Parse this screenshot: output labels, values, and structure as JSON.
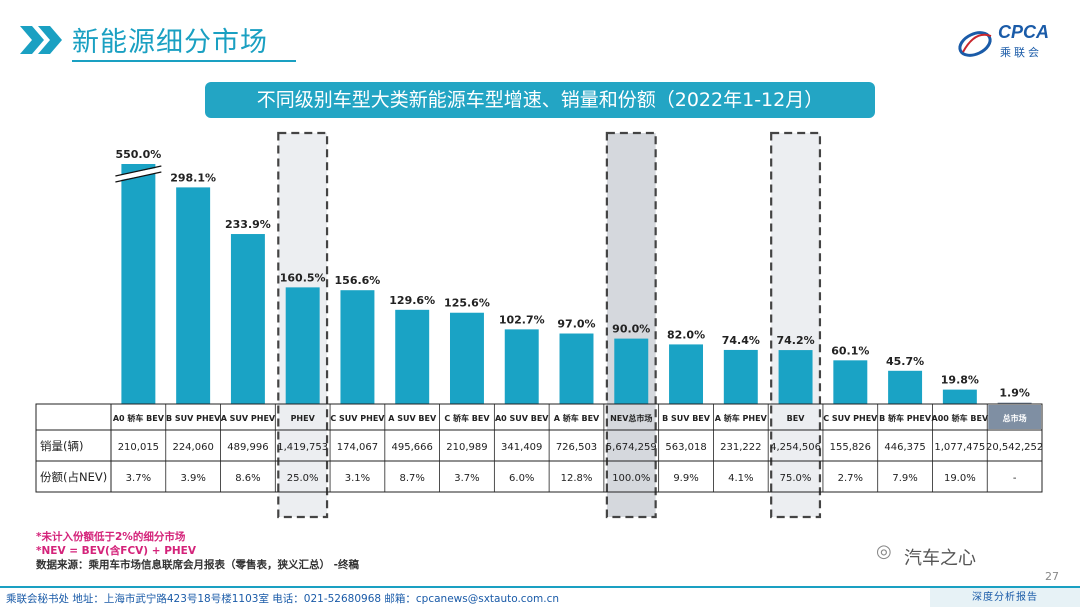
{
  "header": {
    "title": "新能源细分市场",
    "logo_text": "CPCA",
    "logo_sub": "乘联会"
  },
  "chart_data": {
    "type": "bar",
    "title": "不同级别车型大类新能源车型增速、销量和份额（2022年1-12月）",
    "categories": [
      "A0 轿车 BEV",
      "B SUV PHEV",
      "A SUV PHEV",
      "PHEV",
      "C SUV PHEV",
      "A SUV BEV",
      "C 轿车 BEV",
      "A0 SUV BEV",
      "A 轿车 BEV",
      "NEV总市场",
      "B SUV BEV",
      "A 轿车 PHEV",
      "BEV",
      "C SUV PHEV",
      "B 轿车 PHEV",
      "A00 轿车 BEV",
      "总市场"
    ],
    "growth_labels": [
      "550.0%",
      "298.1%",
      "233.9%",
      "160.5%",
      "156.6%",
      "129.6%",
      "125.6%",
      "102.7%",
      "97.0%",
      "90.0%",
      "82.0%",
      "74.4%",
      "74.2%",
      "60.1%",
      "45.7%",
      "19.8%",
      "1.9%"
    ],
    "values": [
      550.0,
      298.1,
      233.9,
      160.5,
      156.6,
      129.6,
      125.6,
      102.7,
      97.0,
      90.0,
      82.0,
      74.4,
      74.2,
      60.1,
      45.7,
      19.8,
      1.9
    ],
    "axis_break_on": "A0 轿车 BEV",
    "highlighted_columns": [
      "PHEV",
      "NEV总市场",
      "BEV"
    ],
    "bar_color": "#1aa3c5",
    "total_market_color": "#7f8fa3",
    "rows": [
      {
        "label": "销量(辆)",
        "values": [
          "210,015",
          "224,060",
          "489,996",
          "1,419,753",
          "174,067",
          "495,666",
          "210,989",
          "341,409",
          "726,503",
          "5,674,259",
          "563,018",
          "231,222",
          "4,254,506",
          "155,826",
          "446,375",
          "1,077,475",
          "20,542,252"
        ]
      },
      {
        "label": "份额(占NEV)",
        "values": [
          "3.7%",
          "3.9%",
          "8.6%",
          "25.0%",
          "3.1%",
          "8.7%",
          "3.7%",
          "6.0%",
          "12.8%",
          "100.0%",
          "9.9%",
          "4.1%",
          "75.0%",
          "2.7%",
          "7.9%",
          "19.0%",
          "-"
        ]
      }
    ]
  },
  "notes": {
    "line1": "*未计入份额低于2%的细分市场",
    "line2": "*NEV = BEV(含FCV) + PHEV",
    "line3": "数据来源：乘用车市场信息联席会月报表（零售表，狭义汇总） -终稿"
  },
  "watermark": {
    "wechat": "汽车之心"
  },
  "page": {
    "number": "27",
    "footer": "乘联会秘书处   地址：上海市武宁路423号18号楼1103室  电话：021-52680968   邮箱：cpcanews@sxtauto.com.cn",
    "footer_right": "深度分析报告"
  }
}
